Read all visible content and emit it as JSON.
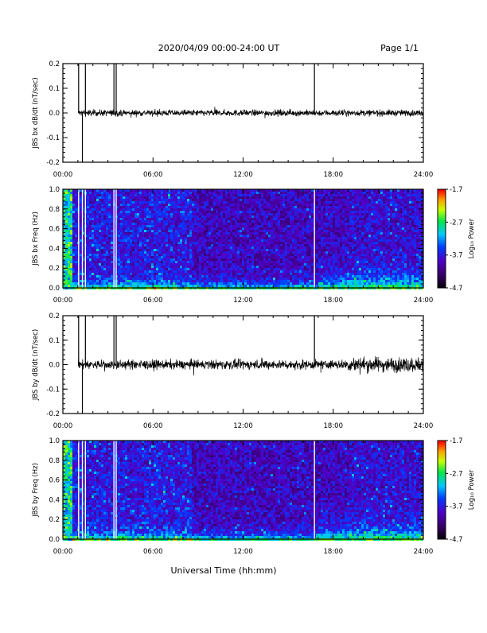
{
  "header": {
    "title": "2020/04/09  00:00-24:00 UT",
    "page_label": "Page 1/1"
  },
  "x_axis": {
    "label": "Universal Time (hh:mm)",
    "tick_labels": [
      "00:00",
      "06:00",
      "12:00",
      "18:00",
      "24:00"
    ],
    "range_hours": [
      0,
      24
    ]
  },
  "chart_data": [
    {
      "type": "line",
      "ylabel": "JBS bx dB/dt (nT/sec)",
      "ylim": [
        -0.2,
        0.2
      ],
      "y_tick_labels": [
        "0.2",
        "0.1",
        "0.0",
        "-0.1",
        "-0.2"
      ],
      "x_range_hours": [
        0,
        24
      ],
      "baseline": 0.0,
      "approx_noise_amplitude": 0.012,
      "spikes": [
        {
          "x_hours": 1.05,
          "direction": "up"
        },
        {
          "x_hours": 1.3,
          "direction": "down"
        },
        {
          "x_hours": 1.5,
          "direction": "up"
        },
        {
          "x_hours": 3.4,
          "direction": "up"
        },
        {
          "x_hours": 3.55,
          "direction": "up"
        },
        {
          "x_hours": 16.75,
          "direction": "up"
        }
      ],
      "line_color": "#000000"
    },
    {
      "type": "heatmap",
      "ylabel": "JBS bx Freq (Hz)",
      "ylim": [
        0.0,
        1.0
      ],
      "y_tick_labels": [
        "1.0",
        "0.8",
        "0.6",
        "0.4",
        "0.2",
        "0.0"
      ],
      "x_range_hours": [
        0,
        24
      ],
      "colorbar": {
        "label": "Log₁₀ Power",
        "range": [
          -4.7,
          -1.7
        ],
        "tick_labels": [
          "-1.7",
          "-2.7",
          "-3.7",
          "-4.7"
        ]
      },
      "data_gaps_hours": [
        1.05,
        1.3,
        1.5,
        3.4,
        3.55,
        16.75
      ]
    },
    {
      "type": "line",
      "ylabel": "JBS by dB/dt (nT/sec)",
      "ylim": [
        -0.2,
        0.2
      ],
      "y_tick_labels": [
        "0.2",
        "0.1",
        "0.0",
        "-0.1",
        "-0.2"
      ],
      "x_range_hours": [
        0,
        24
      ],
      "baseline": 0.0,
      "approx_noise_amplitude": 0.018,
      "spikes": [
        {
          "x_hours": 1.05,
          "direction": "up"
        },
        {
          "x_hours": 1.3,
          "direction": "down"
        },
        {
          "x_hours": 1.5,
          "direction": "up"
        },
        {
          "x_hours": 3.4,
          "direction": "up"
        },
        {
          "x_hours": 3.55,
          "direction": "up"
        },
        {
          "x_hours": 16.75,
          "direction": "up"
        }
      ],
      "line_color": "#000000"
    },
    {
      "type": "heatmap",
      "ylabel": "JBS by Freq (Hz)",
      "ylim": [
        0.0,
        1.0
      ],
      "y_tick_labels": [
        "1.0",
        "0.8",
        "0.6",
        "0.4",
        "0.2",
        "0.0"
      ],
      "x_range_hours": [
        0,
        24
      ],
      "colorbar": {
        "label": "Log₁₀ Power",
        "range": [
          -4.7,
          -1.7
        ],
        "tick_labels": [
          "-1.7",
          "-2.7",
          "-3.7",
          "-4.7"
        ]
      },
      "data_gaps_hours": [
        1.05,
        1.3,
        1.5,
        3.4,
        3.55,
        16.75
      ]
    }
  ]
}
